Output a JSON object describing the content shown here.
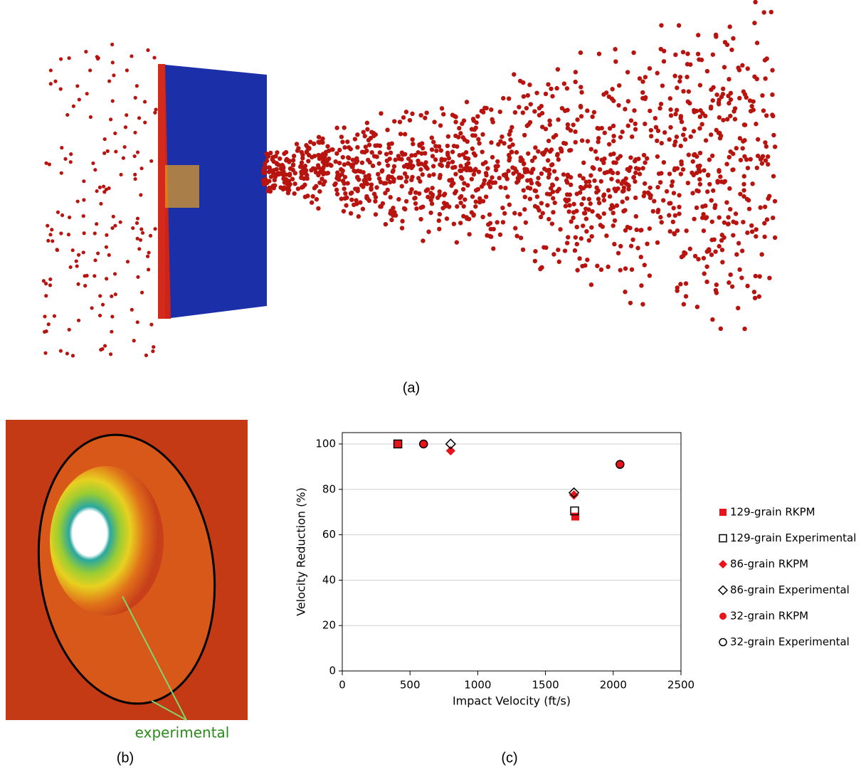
{
  "panel_labels": [
    "(a)",
    "(b)",
    "(c)"
  ],
  "annotation": "experimental",
  "chart_data": {
    "type": "scatter",
    "x_label": "Impact Velocity (ft/s)",
    "y_label": "Velocity Reduction (%)",
    "xlim": [
      0,
      2500
    ],
    "xticks": [
      0,
      500,
      1000,
      1500,
      2000,
      2500
    ],
    "ylim": [
      0,
      105
    ],
    "yticks": [
      0,
      20,
      40,
      60,
      80,
      100
    ],
    "grid": true,
    "legend": "right",
    "series": [
      {
        "name": "129-grain RKPM",
        "color": "#e8141b",
        "marker": "square",
        "filled": true,
        "x": [
          410,
          1720
        ],
        "values": [
          100,
          68
        ]
      },
      {
        "name": "129-grain Experimental",
        "color": "#000000",
        "marker": "square",
        "filled": false,
        "x": [
          410,
          1715
        ],
        "values": [
          100,
          70.5
        ]
      },
      {
        "name": "86-grain RKPM",
        "color": "#e8141b",
        "marker": "diamond",
        "filled": true,
        "x": [
          800,
          1710
        ],
        "values": [
          97,
          77.5
        ]
      },
      {
        "name": "86-grain Experimental",
        "color": "#000000",
        "marker": "diamond",
        "filled": false,
        "x": [
          800,
          1710
        ],
        "values": [
          100,
          78.5
        ]
      },
      {
        "name": "32-grain RKPM",
        "color": "#e8141b",
        "marker": "circle",
        "filled": true,
        "x": [
          600,
          2050
        ],
        "values": [
          100,
          91
        ]
      },
      {
        "name": "32-grain Experimental",
        "color": "#000000",
        "marker": "circle",
        "filled": false,
        "x": [
          600,
          2050
        ],
        "values": [
          100,
          91
        ]
      }
    ]
  }
}
